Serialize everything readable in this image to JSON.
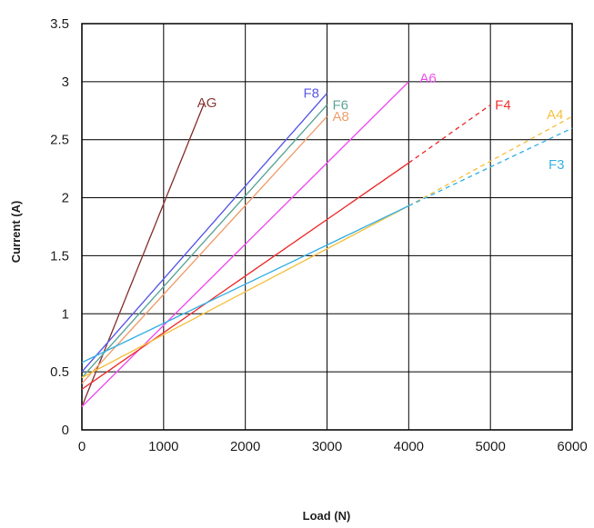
{
  "chart_data": {
    "type": "line",
    "xlabel": "Load (N)",
    "ylabel": "Current (A)",
    "xlim": [
      0,
      6000
    ],
    "ylim": [
      0,
      3.5
    ],
    "x_ticks": [
      "0",
      "1000",
      "2000",
      "3000",
      "4000",
      "5000",
      "6000"
    ],
    "y_ticks": [
      "0",
      "0.5",
      "1",
      "1.5",
      "2",
      "2.5",
      "3",
      "3.5"
    ],
    "grid": true,
    "legend": "none",
    "series": [
      {
        "name": "AG",
        "color": "#8B3A3A",
        "points": [
          [
            0,
            0.2
          ],
          [
            1500,
            2.82
          ]
        ]
      },
      {
        "name": "F8",
        "color": "#5B5BE8",
        "points": [
          [
            0,
            0.5
          ],
          [
            3000,
            2.9
          ]
        ]
      },
      {
        "name": "F6",
        "color": "#5FA89A",
        "points": [
          [
            0,
            0.45
          ],
          [
            3000,
            2.8
          ]
        ]
      },
      {
        "name": "A8",
        "color": "#F0A070",
        "points": [
          [
            0,
            0.4
          ],
          [
            3000,
            2.7
          ]
        ]
      },
      {
        "name": "A6",
        "color": "#F050F0",
        "points": [
          [
            0,
            0.2
          ],
          [
            4000,
            3.0
          ]
        ]
      },
      {
        "name": "F4",
        "color": "#EE3333",
        "points": [
          [
            0,
            0.35
          ],
          [
            4000,
            2.3
          ]
        ],
        "dashed_to": [
          5000,
          2.8
        ]
      },
      {
        "name": "A4",
        "color": "#F5C242",
        "points": [
          [
            0,
            0.45
          ],
          [
            4000,
            1.93
          ]
        ],
        "dashed_to": [
          6000,
          2.7
        ]
      },
      {
        "name": "F3",
        "color": "#3BB3E6",
        "points": [
          [
            0,
            0.58
          ],
          [
            4000,
            1.93
          ]
        ],
        "dashed_to": [
          6000,
          2.6
        ]
      }
    ]
  }
}
